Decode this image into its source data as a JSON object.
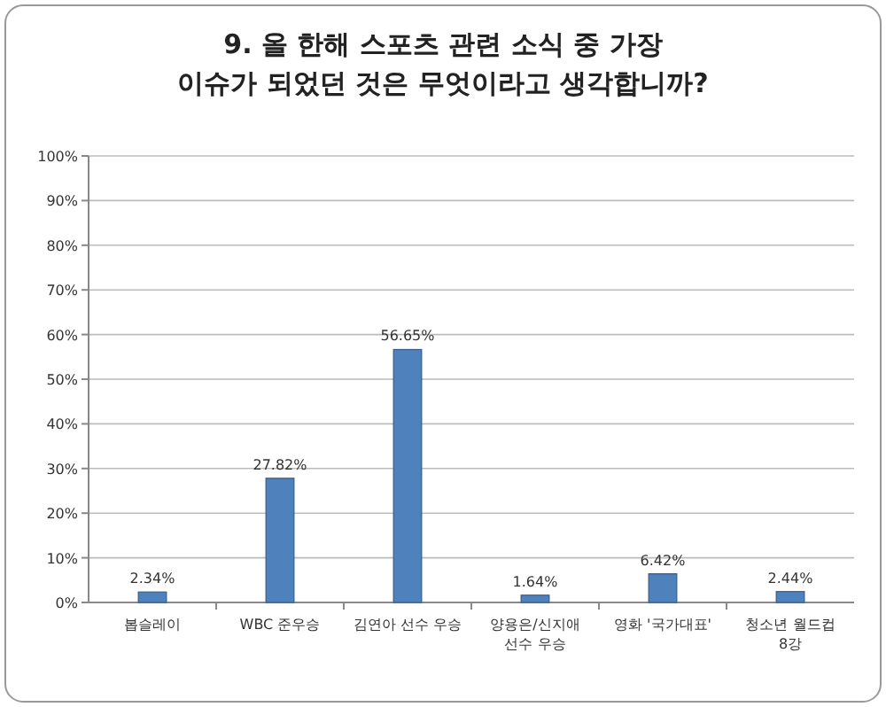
{
  "chart_data": {
    "type": "bar",
    "title": "9. 올 한해 스포츠 관련 소식 중 가장 이슈가 되었던 것은 무엇이라고 생각합니까?",
    "categories": [
      "봅슬레이",
      "WBC 준우승",
      "김연아 선수 우승",
      "양용은/신지애 선수 우승",
      "영화 '국가대표'",
      "청소년 월드컵 8강"
    ],
    "values": [
      2.34,
      27.82,
      56.65,
      1.64,
      6.42,
      2.44
    ],
    "value_labels": [
      "2.34%",
      "27.82%",
      "56.65%",
      "1.64%",
      "6.42%",
      "2.44%"
    ],
    "color": "#4f81bd",
    "ylim": [
      0,
      100
    ],
    "yticks": [
      {
        "value": 0,
        "label": "0%"
      },
      {
        "value": 10,
        "label": "10%"
      },
      {
        "value": 20,
        "label": "20%"
      },
      {
        "value": 30,
        "label": "30%"
      },
      {
        "value": 40,
        "label": "40%"
      },
      {
        "value": 50,
        "label": "50%"
      },
      {
        "value": 60,
        "label": "60%"
      },
      {
        "value": 70,
        "label": "70%"
      },
      {
        "value": 80,
        "label": "80%"
      },
      {
        "value": 90,
        "label": "90%"
      },
      {
        "value": 100,
        "label": "100%"
      }
    ],
    "grid": "y"
  }
}
